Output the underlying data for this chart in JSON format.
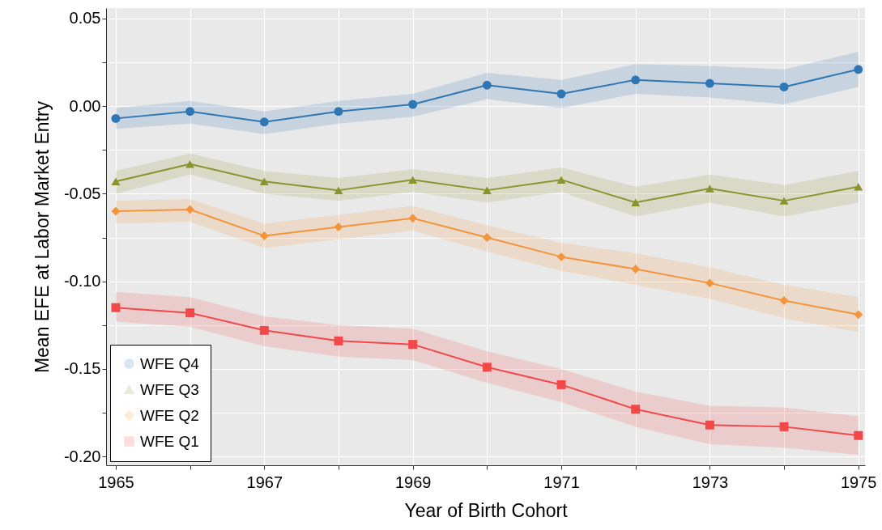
{
  "chart_data": {
    "type": "line",
    "xlabel": "Year of Birth Cohort",
    "ylabel": "Mean EFE at Labor Market Entry",
    "x": [
      1965,
      1966,
      1967,
      1968,
      1969,
      1970,
      1971,
      1972,
      1973,
      1974,
      1975
    ],
    "series": [
      {
        "name": "WFE Q4",
        "color": "#2f77b4",
        "marker": "circle",
        "values": [
          -0.007,
          -0.003,
          -0.009,
          -0.003,
          0.001,
          0.012,
          0.007,
          0.015,
          0.013,
          0.011,
          0.021
        ],
        "lower": [
          -0.013,
          -0.01,
          -0.016,
          -0.01,
          -0.006,
          0.004,
          -0.001,
          0.007,
          0.005,
          0.001,
          0.011
        ],
        "upper": [
          -0.001,
          0.003,
          -0.003,
          0.003,
          0.007,
          0.019,
          0.015,
          0.024,
          0.023,
          0.021,
          0.031
        ]
      },
      {
        "name": "WFE Q3",
        "color": "#8a932d",
        "marker": "triangle",
        "values": [
          -0.043,
          -0.033,
          -0.043,
          -0.048,
          -0.042,
          -0.048,
          -0.042,
          -0.055,
          -0.047,
          -0.054,
          -0.046
        ],
        "lower": [
          -0.05,
          -0.039,
          -0.05,
          -0.054,
          -0.049,
          -0.055,
          -0.049,
          -0.063,
          -0.055,
          -0.063,
          -0.055
        ],
        "upper": [
          -0.037,
          -0.027,
          -0.037,
          -0.041,
          -0.036,
          -0.041,
          -0.035,
          -0.046,
          -0.039,
          -0.045,
          -0.037
        ]
      },
      {
        "name": "WFE Q2",
        "color": "#f4943c",
        "marker": "diamond",
        "values": [
          -0.06,
          -0.059,
          -0.074,
          -0.069,
          -0.064,
          -0.075,
          -0.086,
          -0.093,
          -0.101,
          -0.111,
          -0.119
        ],
        "lower": [
          -0.067,
          -0.066,
          -0.081,
          -0.076,
          -0.071,
          -0.083,
          -0.094,
          -0.102,
          -0.11,
          -0.121,
          -0.129
        ],
        "upper": [
          -0.054,
          -0.053,
          -0.067,
          -0.062,
          -0.057,
          -0.068,
          -0.078,
          -0.084,
          -0.092,
          -0.102,
          -0.109
        ]
      },
      {
        "name": "WFE Q1",
        "color": "#f24848",
        "marker": "square",
        "values": [
          -0.115,
          -0.118,
          -0.128,
          -0.134,
          -0.136,
          -0.149,
          -0.159,
          -0.173,
          -0.182,
          -0.183,
          -0.188
        ],
        "lower": [
          -0.123,
          -0.126,
          -0.137,
          -0.143,
          -0.145,
          -0.158,
          -0.169,
          -0.183,
          -0.193,
          -0.195,
          -0.199
        ],
        "upper": [
          -0.106,
          -0.109,
          -0.12,
          -0.125,
          -0.127,
          -0.14,
          -0.15,
          -0.163,
          -0.171,
          -0.172,
          -0.177
        ]
      }
    ],
    "xlim": [
      1964.87,
      1975.09
    ],
    "ylim": [
      -0.205,
      0.056
    ],
    "xticks": [
      1965,
      {
        "value": 1966,
        "label": null
      },
      1967,
      {
        "value": 1968,
        "label": null
      },
      1969,
      {
        "value": 1970,
        "label": null
      },
      1971,
      {
        "value": 1972,
        "label": null
      },
      1973,
      {
        "value": 1974,
        "label": null
      },
      1975
    ],
    "yticks": [
      {
        "value": -0.2,
        "label": "-0.20"
      },
      {
        "value": -0.175,
        "label": null
      },
      {
        "value": -0.15,
        "label": "-0.15"
      },
      {
        "value": -0.125,
        "label": null
      },
      {
        "value": -0.1,
        "label": "-0.10"
      },
      {
        "value": -0.075,
        "label": null
      },
      {
        "value": -0.05,
        "label": "-0.05"
      },
      {
        "value": -0.025,
        "label": null
      },
      {
        "value": 0,
        "label": "0.00"
      },
      {
        "value": 0.025,
        "label": null
      },
      {
        "value": 0.05,
        "label": "0.05"
      }
    ],
    "grid": true,
    "legend": "bottom left",
    "line_style": "solid"
  }
}
